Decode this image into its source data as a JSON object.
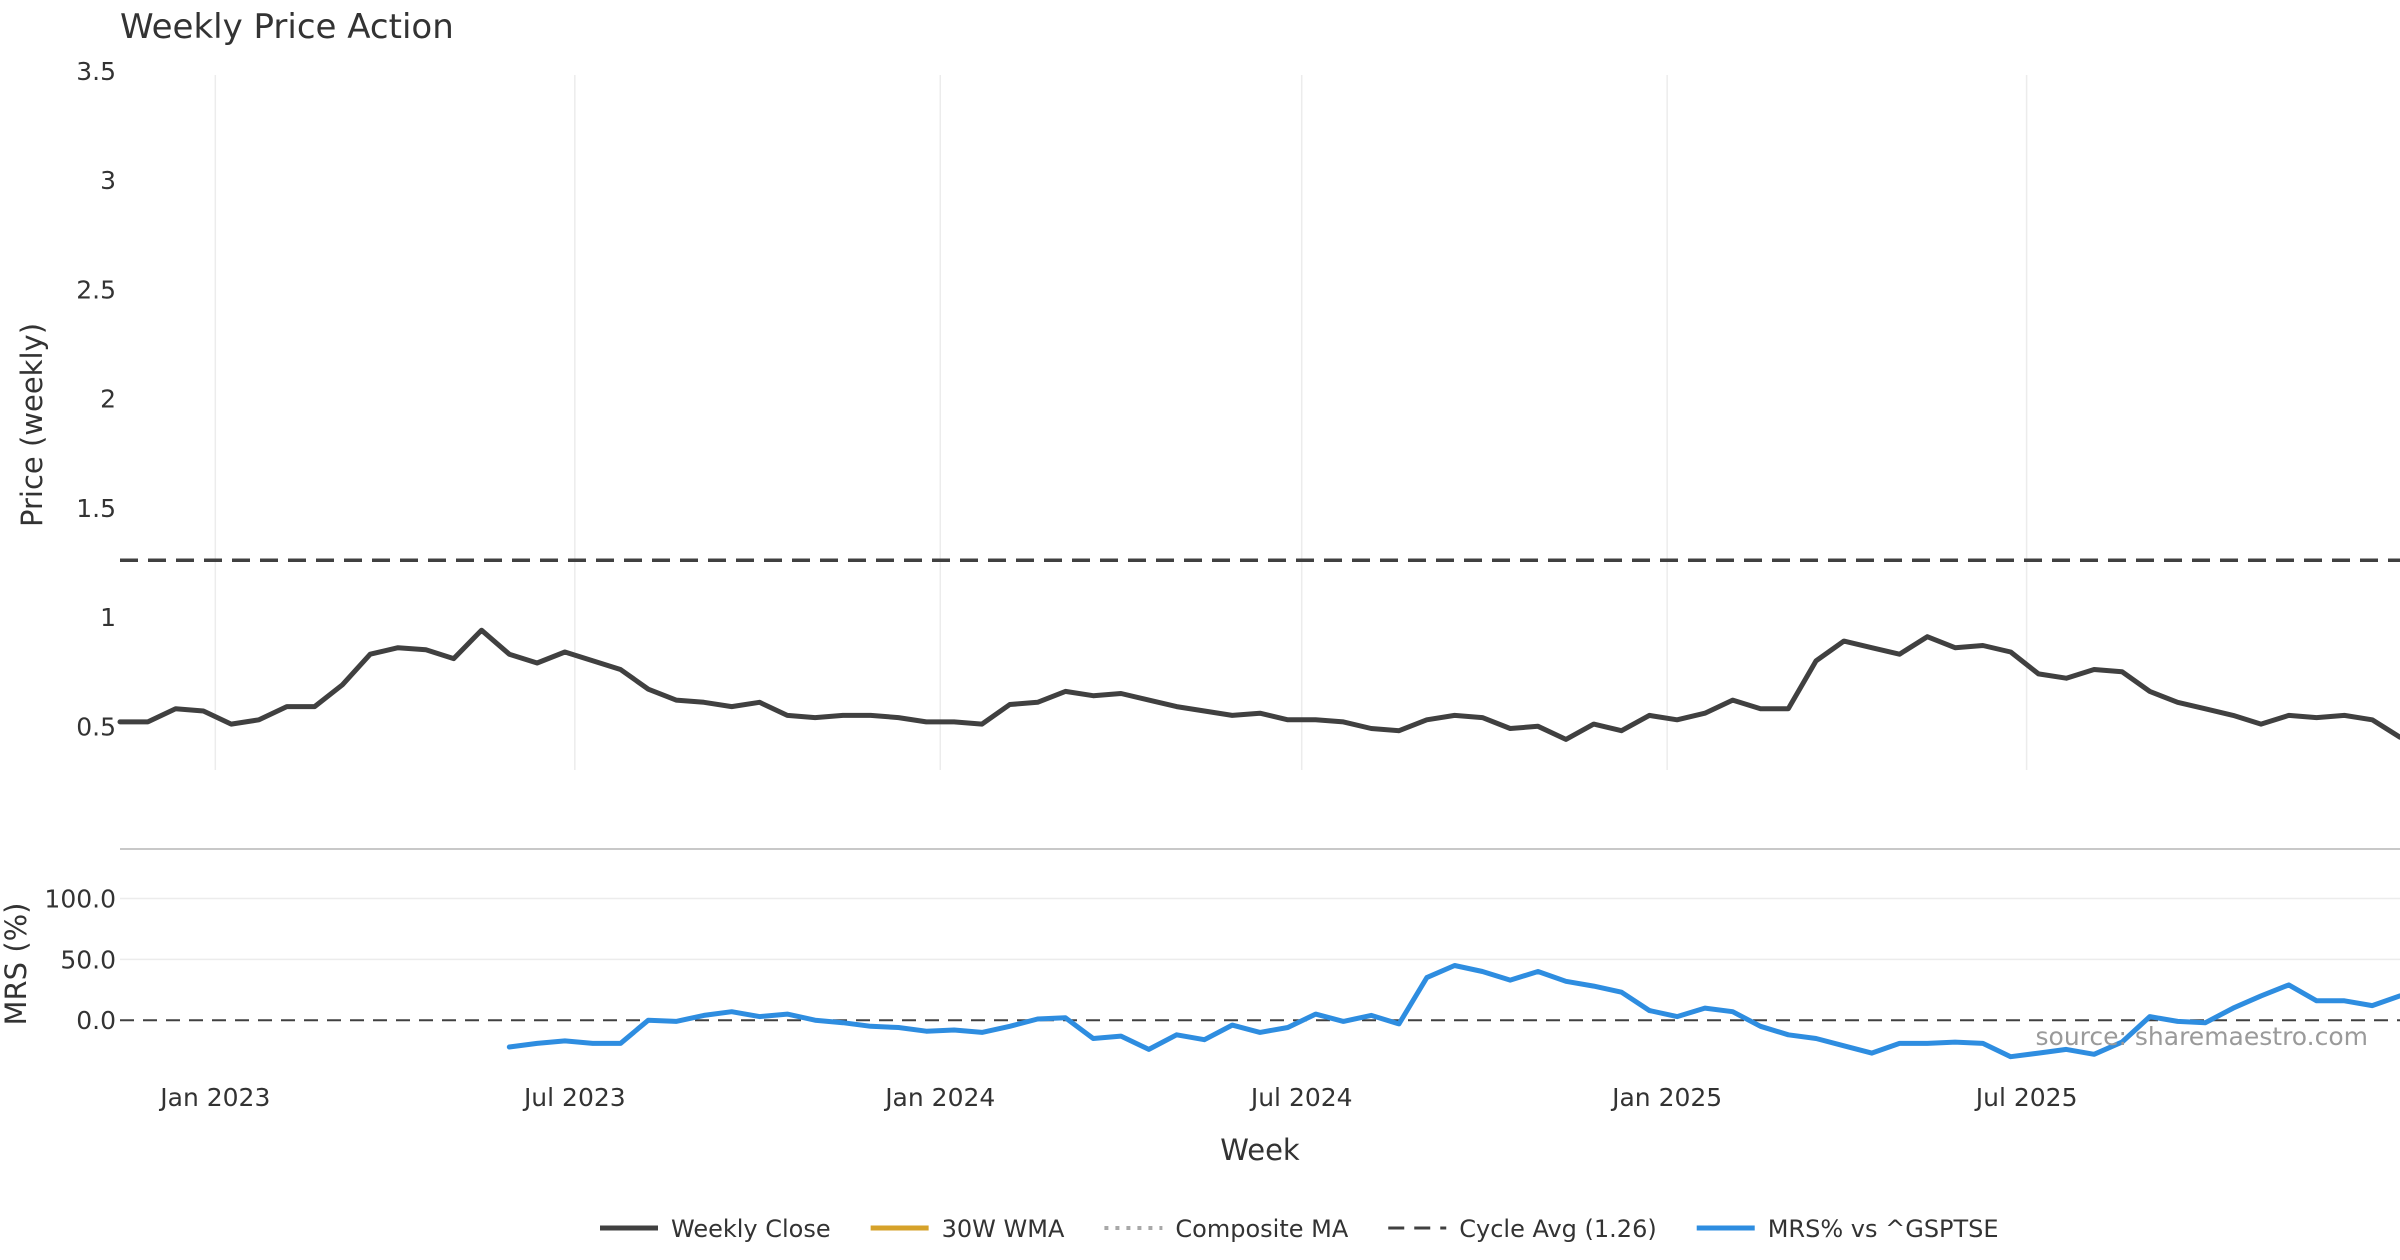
{
  "chart_data": {
    "type": "line",
    "title": "Weekly Price Action",
    "xlabel": "Week",
    "source": "source: sharemaestro.com",
    "colors": {
      "close": "#404040",
      "wma": "#d6a22a",
      "composite": "#a8a8a8",
      "cycle": "#404040",
      "mrs": "#2e8de0",
      "buy_marker": "#1e9e1e",
      "sell_marker": "#cc1111",
      "grid": "#ececec",
      "separator": "#c8c8c8"
    },
    "x_range": [
      "2022-11-14",
      "2026-01-05"
    ],
    "x_ticks": [
      {
        "date": "2023-01-01",
        "label": "Jan 2023"
      },
      {
        "date": "2023-07-01",
        "label": "Jul 2023"
      },
      {
        "date": "2024-01-01",
        "label": "Jan 2024"
      },
      {
        "date": "2024-07-01",
        "label": "Jul 2024"
      },
      {
        "date": "2025-01-01",
        "label": "Jan 2025"
      },
      {
        "date": "2025-07-01",
        "label": "Jul 2025"
      }
    ],
    "price_panel": {
      "ylabel": "Price (weekly)",
      "ylim": [
        0.3,
        3.55
      ],
      "y_ticks": [
        {
          "value": 0.5,
          "label": "0.5"
        },
        {
          "value": 1,
          "label": "1"
        },
        {
          "value": 1.5,
          "label": "1.5"
        },
        {
          "value": 2,
          "label": "2"
        },
        {
          "value": 2.5,
          "label": "2.5"
        },
        {
          "value": 3,
          "label": "3"
        },
        {
          "value": 3.5,
          "label": "3.5"
        }
      ],
      "cycle_avg": 1.26,
      "series": [
        {
          "name": "Weekly Close",
          "key": "close",
          "points": [
            [
              "2022-11-14",
              0.52
            ],
            [
              "2022-11-28",
              0.52
            ],
            [
              "2022-12-12",
              0.58
            ],
            [
              "2022-12-26",
              0.57
            ],
            [
              "2023-01-09",
              0.51
            ],
            [
              "2023-01-23",
              0.53
            ],
            [
              "2023-02-06",
              0.59
            ],
            [
              "2023-02-20",
              0.59
            ],
            [
              "2023-03-06",
              0.69
            ],
            [
              "2023-03-20",
              0.83
            ],
            [
              "2023-04-03",
              0.86
            ],
            [
              "2023-04-17",
              0.85
            ],
            [
              "2023-05-01",
              0.81
            ],
            [
              "2023-05-15",
              0.94
            ],
            [
              "2023-05-29",
              0.83
            ],
            [
              "2023-06-12",
              0.79
            ],
            [
              "2023-06-26",
              0.84
            ],
            [
              "2023-07-10",
              0.8
            ],
            [
              "2023-07-24",
              0.76
            ],
            [
              "2023-08-07",
              0.67
            ],
            [
              "2023-08-21",
              0.62
            ],
            [
              "2023-09-04",
              0.61
            ],
            [
              "2023-09-18",
              0.59
            ],
            [
              "2023-10-02",
              0.61
            ],
            [
              "2023-10-16",
              0.55
            ],
            [
              "2023-10-30",
              0.54
            ],
            [
              "2023-11-13",
              0.55
            ],
            [
              "2023-11-27",
              0.55
            ],
            [
              "2023-12-11",
              0.54
            ],
            [
              "2023-12-25",
              0.52
            ],
            [
              "2024-01-08",
              0.52
            ],
            [
              "2024-01-22",
              0.51
            ],
            [
              "2024-02-05",
              0.6
            ],
            [
              "2024-02-19",
              0.61
            ],
            [
              "2024-03-04",
              0.66
            ],
            [
              "2024-03-18",
              0.64
            ],
            [
              "2024-04-01",
              0.65
            ],
            [
              "2024-04-15",
              0.62
            ],
            [
              "2024-04-29",
              0.59
            ],
            [
              "2024-05-13",
              0.57
            ],
            [
              "2024-05-27",
              0.55
            ],
            [
              "2024-06-10",
              0.56
            ],
            [
              "2024-06-24",
              0.53
            ],
            [
              "2024-07-08",
              0.53
            ],
            [
              "2024-07-22",
              0.52
            ],
            [
              "2024-08-05",
              0.49
            ],
            [
              "2024-08-19",
              0.48
            ],
            [
              "2024-09-02",
              0.53
            ],
            [
              "2024-09-16",
              0.55
            ],
            [
              "2024-09-30",
              0.54
            ],
            [
              "2024-10-14",
              0.49
            ],
            [
              "2024-10-28",
              0.5
            ],
            [
              "2024-11-11",
              0.44
            ],
            [
              "2024-11-25",
              0.51
            ],
            [
              "2024-12-09",
              0.48
            ],
            [
              "2024-12-23",
              0.55
            ],
            [
              "2025-01-06",
              0.53
            ],
            [
              "2025-01-20",
              0.56
            ],
            [
              "2025-02-03",
              0.62
            ],
            [
              "2025-02-17",
              0.58
            ],
            [
              "2025-03-03",
              0.58
            ],
            [
              "2025-03-17",
              0.8
            ],
            [
              "2025-03-31",
              0.89
            ],
            [
              "2025-04-14",
              0.86
            ],
            [
              "2025-04-28",
              0.83
            ],
            [
              "2025-05-12",
              0.91
            ],
            [
              "2025-05-26",
              0.86
            ],
            [
              "2025-06-09",
              0.87
            ],
            [
              "2025-06-23",
              0.84
            ],
            [
              "2025-07-07",
              0.74
            ],
            [
              "2025-07-21",
              0.72
            ],
            [
              "2025-08-04",
              0.76
            ],
            [
              "2025-08-18",
              0.75
            ],
            [
              "2025-09-01",
              0.66
            ],
            [
              "2025-09-15",
              0.61
            ],
            [
              "2025-09-29",
              0.58
            ],
            [
              "2025-10-13",
              0.55
            ],
            [
              "2025-10-27",
              0.51
            ],
            [
              "2025-11-10",
              0.55
            ],
            [
              "2025-11-24",
              0.54
            ],
            [
              "2025-12-08",
              0.55
            ],
            [
              "2025-12-22",
              0.53
            ],
            [
              "2026-01-05",
              0.45
            ]
          ]
        }
      ]
    },
    "mrs_panel": {
      "ylabel": "MRS (%)",
      "ylim": [
        -45,
        130
      ],
      "y_ticks": [
        {
          "value": 0,
          "label": "0.0"
        },
        {
          "value": 50,
          "label": "50.0"
        },
        {
          "value": 100,
          "label": "100.0"
        }
      ],
      "series": [
        {
          "name": "MRS% vs ^GSPTSE",
          "key": "mrs",
          "points": [
            [
              "2023-05-29",
              -22
            ],
            [
              "2023-06-12",
              -19
            ],
            [
              "2023-06-26",
              -17
            ],
            [
              "2023-07-10",
              -19
            ],
            [
              "2023-07-24",
              -19
            ],
            [
              "2023-08-07",
              0
            ],
            [
              "2023-08-21",
              -1
            ],
            [
              "2023-09-04",
              4
            ],
            [
              "2023-09-18",
              7
            ],
            [
              "2023-10-02",
              3
            ],
            [
              "2023-10-16",
              5
            ],
            [
              "2023-10-30",
              0
            ],
            [
              "2023-11-13",
              -2
            ],
            [
              "2023-11-27",
              -5
            ],
            [
              "2023-12-11",
              -6
            ],
            [
              "2023-12-25",
              -9
            ],
            [
              "2024-01-08",
              -8
            ],
            [
              "2024-01-22",
              -10
            ],
            [
              "2024-02-05",
              -5
            ],
            [
              "2024-02-19",
              1
            ],
            [
              "2024-03-04",
              2
            ],
            [
              "2024-03-18",
              -15
            ],
            [
              "2024-04-01",
              -13
            ],
            [
              "2024-04-15",
              -24
            ],
            [
              "2024-04-29",
              -12
            ],
            [
              "2024-05-13",
              -16
            ],
            [
              "2024-05-27",
              -4
            ],
            [
              "2024-06-10",
              -10
            ],
            [
              "2024-06-24",
              -6
            ],
            [
              "2024-07-08",
              5
            ],
            [
              "2024-07-22",
              -1
            ],
            [
              "2024-08-05",
              4
            ],
            [
              "2024-08-19",
              -3
            ],
            [
              "2024-09-02",
              35
            ],
            [
              "2024-09-16",
              45
            ],
            [
              "2024-09-30",
              40
            ],
            [
              "2024-10-14",
              33
            ],
            [
              "2024-10-28",
              40
            ],
            [
              "2024-11-11",
              32
            ],
            [
              "2024-11-25",
              28
            ],
            [
              "2024-12-09",
              23
            ],
            [
              "2024-12-23",
              8
            ],
            [
              "2025-01-06",
              3
            ],
            [
              "2025-01-20",
              10
            ],
            [
              "2025-02-03",
              7
            ],
            [
              "2025-02-17",
              -5
            ],
            [
              "2025-03-03",
              -12
            ],
            [
              "2025-03-17",
              -15
            ],
            [
              "2025-03-31",
              -21
            ],
            [
              "2025-04-14",
              -27
            ],
            [
              "2025-04-28",
              -19
            ],
            [
              "2025-05-12",
              -19
            ],
            [
              "2025-05-26",
              -18
            ],
            [
              "2025-06-09",
              -19
            ],
            [
              "2025-06-23",
              -30
            ],
            [
              "2025-07-07",
              -27
            ],
            [
              "2025-07-21",
              -24
            ],
            [
              "2025-08-04",
              -28
            ],
            [
              "2025-08-18",
              -18
            ],
            [
              "2025-09-01",
              3
            ],
            [
              "2025-09-15",
              -1
            ],
            [
              "2025-09-29",
              -2
            ],
            [
              "2025-10-13",
              10
            ],
            [
              "2025-10-27",
              20
            ],
            [
              "2025-11-10",
              29
            ],
            [
              "2025-11-24",
              16
            ],
            [
              "2025-12-08",
              16
            ],
            [
              "2025-12-22",
              12
            ],
            [
              "2026-01-05",
              20
            ]
          ]
        }
      ]
    },
    "legend": [
      {
        "key": "close",
        "label": "Weekly Close",
        "style": "solid"
      },
      {
        "key": "wma",
        "label": "30W WMA",
        "style": "solid"
      },
      {
        "key": "composite",
        "label": "Composite MA",
        "style": "dotted"
      },
      {
        "key": "cycle",
        "label": "Cycle Avg (1.26)",
        "style": "dashed"
      },
      {
        "key": "mrs",
        "label": "MRS% vs ^GSPTSE",
        "style": "solid"
      }
    ]
  }
}
